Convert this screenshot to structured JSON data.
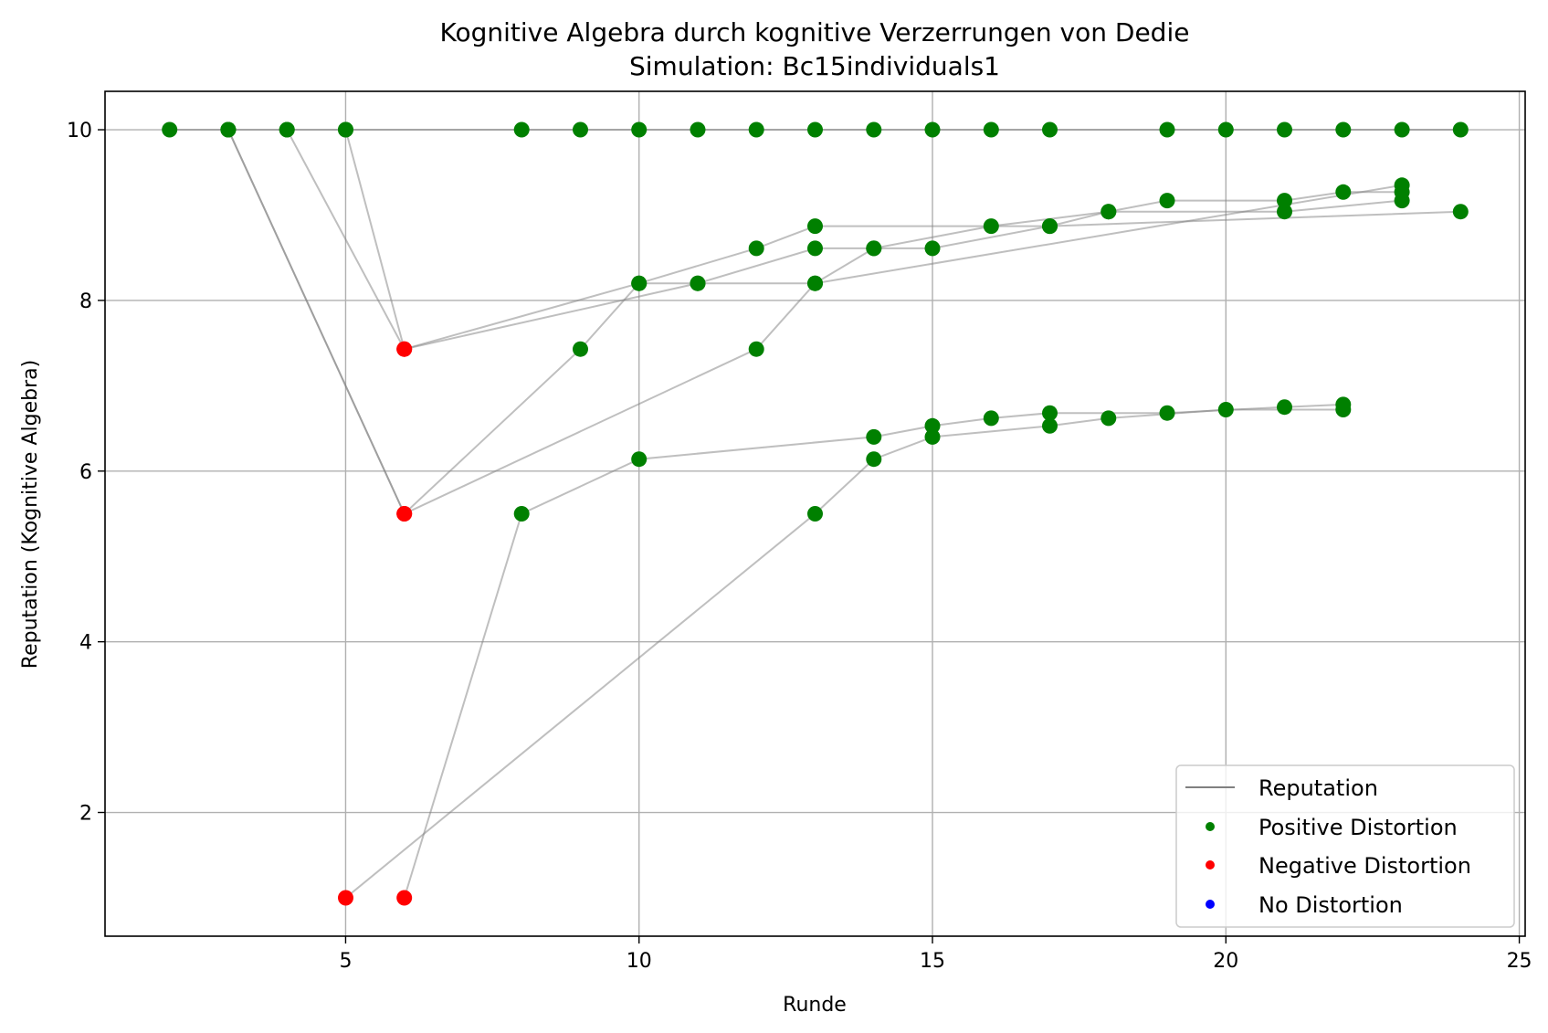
{
  "chart_data": {
    "type": "scatter",
    "title": "Kognitive Algebra durch kognitive Verzerrungen von Dedie",
    "subtitle": "Simulation: Bc15individuals1",
    "xlabel": "Runde",
    "ylabel": "Reputation (Kognitive Algebra)",
    "xlim": [
      0.9,
      25.1
    ],
    "ylim": [
      0.55,
      10.45
    ],
    "xticks": [
      5,
      10,
      15,
      20,
      25
    ],
    "yticks": [
      2,
      4,
      6,
      8,
      10
    ],
    "grid": true,
    "legend_position": "bottom-right",
    "legend": [
      {
        "label": "Reputation",
        "kind": "line",
        "color": "#808080"
      },
      {
        "label": "Positive Distortion",
        "kind": "marker",
        "color": "#008000"
      },
      {
        "label": "Negative Distortion",
        "kind": "marker",
        "color": "#ff0000"
      },
      {
        "label": "No Distortion",
        "kind": "marker",
        "color": "#0000ff"
      }
    ],
    "series": [
      {
        "points": [
          [
            2,
            10
          ],
          [
            3,
            10
          ],
          [
            4,
            10
          ],
          [
            5,
            10
          ],
          [
            8,
            10
          ],
          [
            9,
            10
          ],
          [
            10,
            10
          ],
          [
            11,
            10
          ],
          [
            12,
            10
          ],
          [
            13,
            10
          ],
          [
            14,
            10
          ],
          [
            15,
            10
          ],
          [
            16,
            10
          ],
          [
            17,
            10
          ],
          [
            19,
            10
          ],
          [
            20,
            10
          ],
          [
            21,
            10
          ],
          [
            22,
            10
          ],
          [
            23,
            10
          ],
          [
            24,
            10
          ]
        ],
        "colors": [
          "g",
          "g",
          "g",
          "g",
          "g",
          "g",
          "g",
          "g",
          "g",
          "g",
          "g",
          "g",
          "g",
          "g",
          "g",
          "g",
          "g",
          "g",
          "g",
          "g"
        ]
      },
      {
        "points": [
          [
            3,
            10
          ],
          [
            6,
            5.5
          ],
          [
            9,
            7.43
          ],
          [
            10,
            8.2
          ],
          [
            11,
            8.2
          ],
          [
            13,
            8.61
          ],
          [
            14,
            8.61
          ],
          [
            16,
            8.87
          ],
          [
            18,
            9.04
          ],
          [
            19,
            9.17
          ],
          [
            21,
            9.17
          ],
          [
            22,
            9.27
          ],
          [
            23,
            9.27
          ]
        ],
        "colors": [
          "g",
          "r",
          "g",
          "g",
          "g",
          "g",
          "g",
          "g",
          "g",
          "g",
          "g",
          "g",
          "g"
        ]
      },
      {
        "points": [
          [
            3,
            10
          ],
          [
            6,
            5.5
          ],
          [
            12,
            7.43
          ],
          [
            13,
            8.2
          ],
          [
            14,
            8.61
          ],
          [
            15,
            8.61
          ],
          [
            17,
            8.87
          ],
          [
            18,
            9.04
          ],
          [
            21,
            9.04
          ],
          [
            23,
            9.17
          ]
        ],
        "colors": [
          "g",
          "r",
          "g",
          "g",
          "g",
          "g",
          "g",
          "g",
          "g",
          "g"
        ]
      },
      {
        "points": [
          [
            4,
            10
          ],
          [
            6,
            7.43
          ],
          [
            10,
            8.2
          ],
          [
            12,
            8.61
          ],
          [
            13,
            8.87
          ],
          [
            17,
            8.87
          ],
          [
            24,
            9.04
          ]
        ],
        "colors": [
          "g",
          "r",
          "g",
          "g",
          "g",
          "g",
          "g"
        ]
      },
      {
        "points": [
          [
            5,
            10
          ],
          [
            6,
            7.43
          ],
          [
            11,
            8.2
          ],
          [
            13,
            8.2
          ],
          [
            23,
            9.35
          ]
        ],
        "colors": [
          "g",
          "r",
          "g",
          "g",
          "g"
        ]
      },
      {
        "points": [
          [
            6,
            1.0
          ],
          [
            8,
            5.5
          ],
          [
            10,
            6.14
          ],
          [
            14,
            6.4
          ],
          [
            15,
            6.53
          ],
          [
            16,
            6.62
          ],
          [
            17,
            6.68
          ],
          [
            19,
            6.68
          ],
          [
            21,
            6.75
          ],
          [
            22,
            6.78
          ]
        ],
        "colors": [
          "r",
          "g",
          "g",
          "g",
          "g",
          "g",
          "g",
          "g",
          "g",
          "g"
        ]
      },
      {
        "points": [
          [
            5,
            1.0
          ],
          [
            13,
            5.5
          ],
          [
            14,
            6.14
          ],
          [
            15,
            6.4
          ],
          [
            17,
            6.53
          ],
          [
            18,
            6.62
          ],
          [
            20,
            6.72
          ],
          [
            22,
            6.72
          ]
        ],
        "colors": [
          "r",
          "g",
          "g",
          "g",
          "g",
          "g",
          "g",
          "g"
        ]
      }
    ],
    "marker_colors": {
      "g": "#008000",
      "r": "#ff0000",
      "b": "#0000ff"
    },
    "line_color": "#808080"
  }
}
